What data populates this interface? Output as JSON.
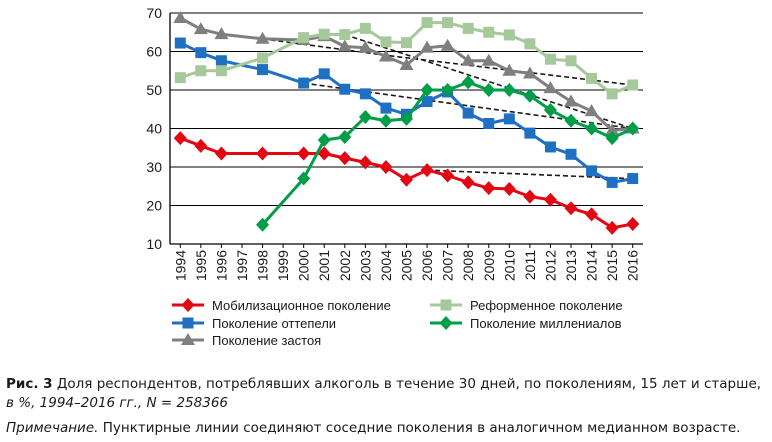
{
  "chart_data": {
    "type": "line",
    "x": [
      1994,
      1995,
      1996,
      1997,
      1998,
      1999,
      2000,
      2001,
      2002,
      2003,
      2004,
      2005,
      2006,
      2007,
      2008,
      2009,
      2010,
      2011,
      2012,
      2013,
      2014,
      2015,
      2016
    ],
    "ylim": [
      10,
      70
    ],
    "yticks": [
      10,
      20,
      30,
      40,
      50,
      60,
      70
    ],
    "grid": true,
    "legend_position": "bottom",
    "series": [
      {
        "name": "Мобилизационное поколение",
        "color": "#e30613",
        "marker": "diamond",
        "points": [
          [
            1994,
            37.5
          ],
          [
            1995,
            35.5
          ],
          [
            1996,
            33.5
          ],
          [
            1998,
            33.5
          ],
          [
            2000,
            33.5
          ],
          [
            2001,
            33.5
          ],
          [
            2002,
            32.3
          ],
          [
            2003,
            31.2
          ],
          [
            2004,
            30.0
          ],
          [
            2005,
            26.7
          ],
          [
            2006,
            29.2
          ],
          [
            2007,
            27.8
          ],
          [
            2008,
            26.0
          ],
          [
            2009,
            24.5
          ],
          [
            2010,
            24.3
          ],
          [
            2011,
            22.3
          ],
          [
            2012,
            21.5
          ],
          [
            2013,
            19.3
          ],
          [
            2014,
            17.7
          ],
          [
            2015,
            14.2
          ],
          [
            2016,
            15.2
          ]
        ]
      },
      {
        "name": "Поколение оттепели",
        "color": "#1f6fc3",
        "marker": "square",
        "points": [
          [
            1994,
            62.2
          ],
          [
            1995,
            59.7
          ],
          [
            1996,
            57.6
          ],
          [
            1998,
            55.3
          ],
          [
            2000,
            51.8
          ],
          [
            2001,
            54.2
          ],
          [
            2002,
            50.2
          ],
          [
            2003,
            49.0
          ],
          [
            2004,
            45.3
          ],
          [
            2005,
            43.7
          ],
          [
            2006,
            47.0
          ],
          [
            2007,
            49.5
          ],
          [
            2008,
            44.0
          ],
          [
            2009,
            41.3
          ],
          [
            2010,
            42.5
          ],
          [
            2011,
            38.8
          ],
          [
            2012,
            35.2
          ],
          [
            2013,
            33.3
          ],
          [
            2014,
            29.0
          ],
          [
            2015,
            26.0
          ],
          [
            2016,
            27.0
          ]
        ]
      },
      {
        "name": "Поколение застоя",
        "color": "#7f7f7f",
        "marker": "triangle",
        "points": [
          [
            1994,
            68.7
          ],
          [
            1995,
            65.8
          ],
          [
            1996,
            64.5
          ],
          [
            1998,
            63.3
          ],
          [
            2000,
            63.0
          ],
          [
            2001,
            64.0
          ],
          [
            2002,
            61.3
          ],
          [
            2003,
            61.0
          ],
          [
            2004,
            58.7
          ],
          [
            2005,
            56.5
          ],
          [
            2006,
            61.0
          ],
          [
            2007,
            61.5
          ],
          [
            2008,
            57.6
          ],
          [
            2009,
            57.6
          ],
          [
            2010,
            55.0
          ],
          [
            2011,
            54.3
          ],
          [
            2012,
            50.5
          ],
          [
            2013,
            47.0
          ],
          [
            2014,
            44.5
          ],
          [
            2015,
            39.5
          ],
          [
            2016,
            40.0
          ]
        ]
      },
      {
        "name": "Реформенное поколение",
        "color": "#a5c99b",
        "marker": "square",
        "points": [
          [
            1994,
            53.2
          ],
          [
            1995,
            55.0
          ],
          [
            1996,
            55.0
          ],
          [
            1998,
            58.3
          ],
          [
            2000,
            63.6
          ],
          [
            2001,
            64.5
          ],
          [
            2002,
            64.4
          ],
          [
            2003,
            66.0
          ],
          [
            2004,
            62.5
          ],
          [
            2005,
            62.3
          ],
          [
            2006,
            67.5
          ],
          [
            2007,
            67.5
          ],
          [
            2008,
            66.0
          ],
          [
            2009,
            65.0
          ],
          [
            2010,
            64.3
          ],
          [
            2011,
            62.0
          ],
          [
            2012,
            58.0
          ],
          [
            2013,
            57.6
          ],
          [
            2014,
            53.0
          ],
          [
            2015,
            49.0
          ],
          [
            2016,
            51.3
          ]
        ]
      },
      {
        "name": "Поколение миллениалов",
        "color": "#009e49",
        "marker": "diamond",
        "points": [
          [
            1998,
            15.0
          ],
          [
            2000,
            27.0
          ],
          [
            2001,
            37.0
          ],
          [
            2002,
            37.8
          ],
          [
            2003,
            43.0
          ],
          [
            2004,
            42.0
          ],
          [
            2005,
            42.5
          ],
          [
            2006,
            50.0
          ],
          [
            2007,
            50.0
          ],
          [
            2008,
            52.0
          ],
          [
            2009,
            50.0
          ],
          [
            2010,
            50.0
          ],
          [
            2011,
            48.5
          ],
          [
            2012,
            44.8
          ],
          [
            2013,
            42.0
          ],
          [
            2014,
            40.0
          ],
          [
            2015,
            37.5
          ],
          [
            2016,
            40.0
          ]
        ]
      }
    ],
    "dashed_lines": [
      [
        [
          1998,
          63.3
        ],
        [
          2004,
          59.0
        ],
        [
          2016,
          51.3
        ]
      ],
      [
        [
          2000,
          51.8
        ],
        [
          2016,
          40.0
        ]
      ],
      [
        [
          2002,
          64.4
        ],
        [
          2016,
          40.0
        ]
      ],
      [
        [
          2006,
          29.2
        ],
        [
          2016,
          27.0
        ]
      ]
    ]
  },
  "caption": {
    "fig_label": "Рис. 3",
    "main": " Доля респондентов, потреблявших алкоголь в течение 30 дней, по поколениям, 15 лет и старше, ",
    "italic": "в %, 1994–2016 гг., N = 258366"
  },
  "note": {
    "label": "Примечание.",
    "text": " Пунктирные линии соединяют соседние поколения в аналогичном медианном возрасте."
  }
}
